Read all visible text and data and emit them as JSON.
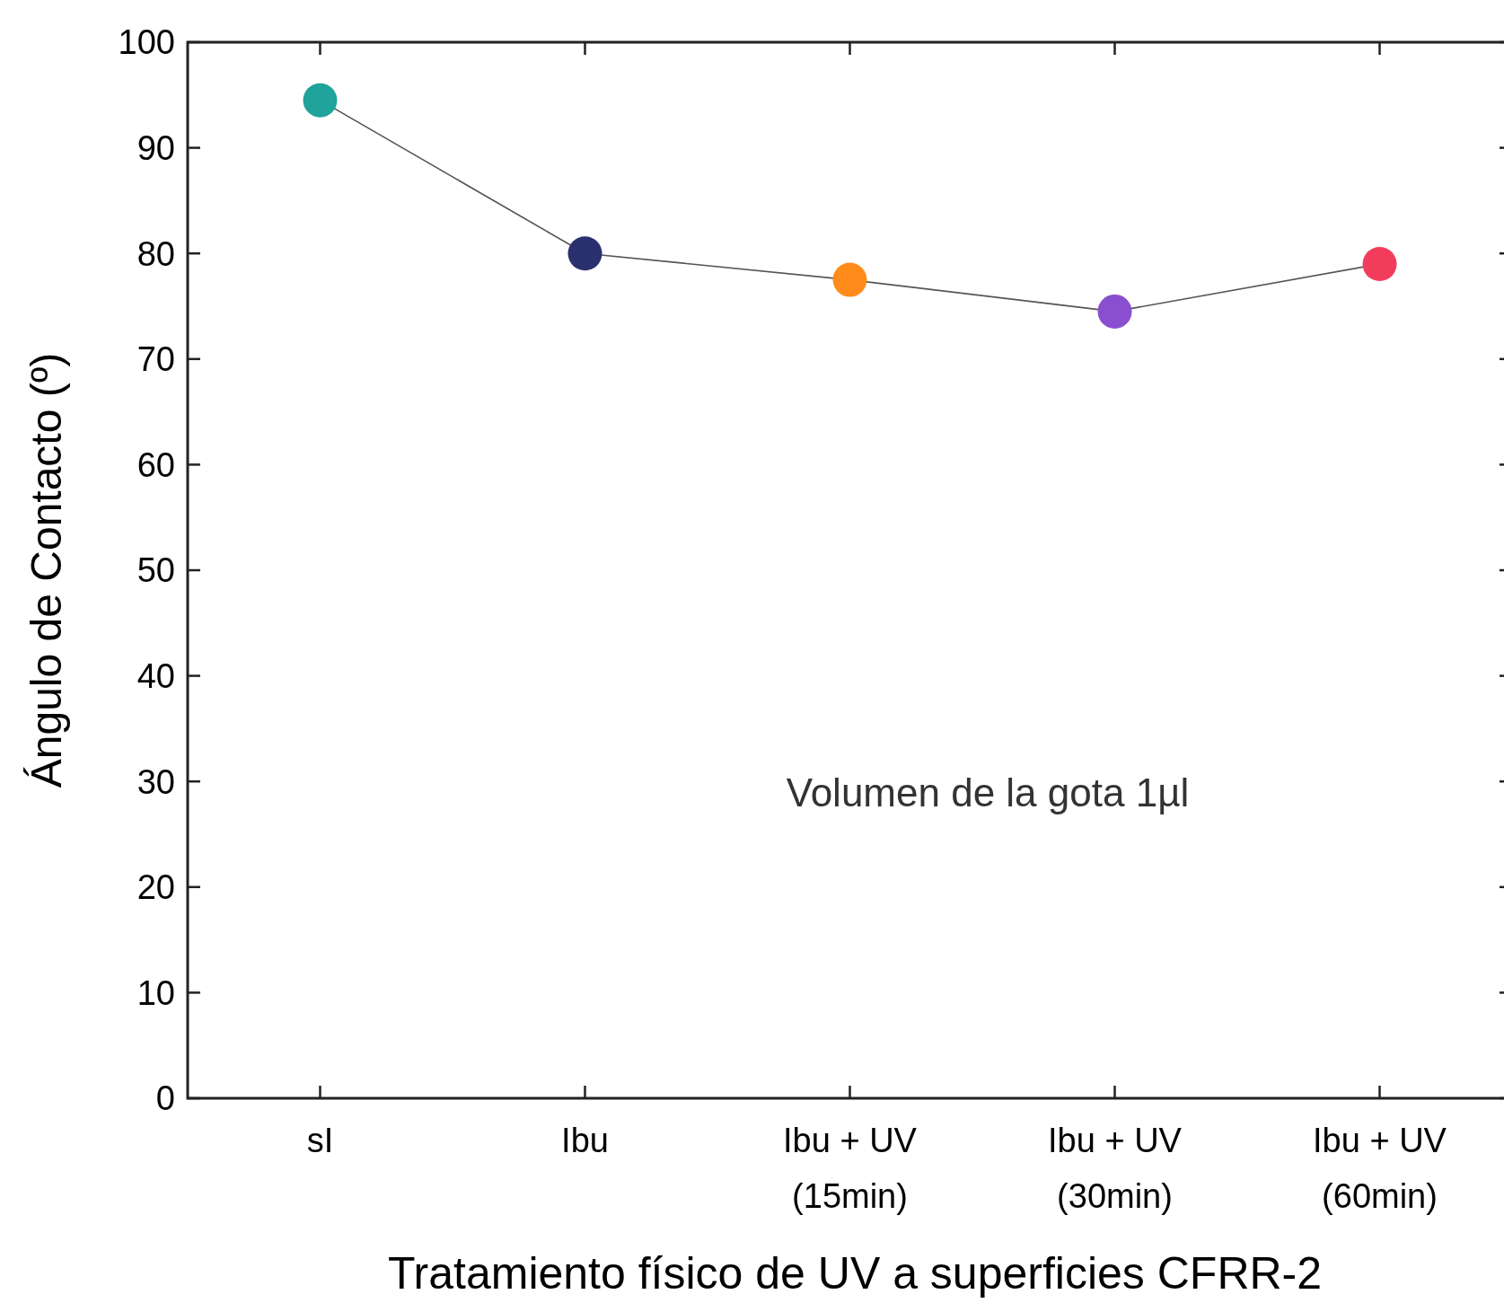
{
  "chart_data": {
    "type": "line",
    "xlabel": "Tratamiento físico de UV a superficies CFRR-2",
    "ylabel": "Ángulo de Contacto (º)",
    "categories": [
      "sI",
      "Ibu",
      "Ibu + UV\n(15min)",
      "Ibu + UV\n(30min)",
      "Ibu + UV\n(60min)"
    ],
    "series": [
      {
        "color": "#555555",
        "colors": [
          "#1fa39a",
          "#2a2f6e",
          "#ff8c1a",
          "#8a4fd0",
          "#f23c5c"
        ],
        "values": [
          94.5,
          80,
          77.5,
          74.5,
          79
        ]
      }
    ],
    "ylim": [
      0,
      100
    ],
    "yticks": [
      0,
      10,
      20,
      30,
      40,
      50,
      60,
      70,
      80,
      90,
      100
    ],
    "grid": false,
    "legend": false,
    "marker": "circle",
    "line_style": "solid",
    "annotations": [
      "Volumen de la gota 1µl"
    ]
  }
}
